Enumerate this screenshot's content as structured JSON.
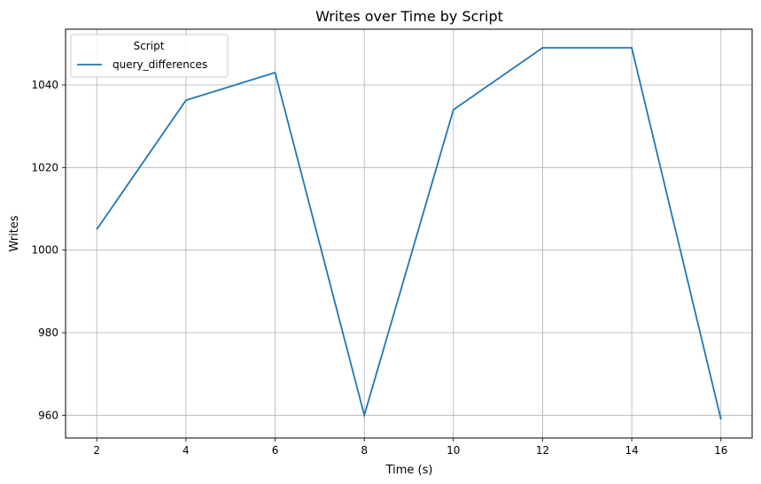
{
  "chart_data": {
    "type": "line",
    "title": "Writes over Time by Script",
    "xlabel": "Time (s)",
    "ylabel": "Writes",
    "x": [
      2,
      4,
      6,
      8,
      10,
      12,
      14,
      16
    ],
    "series": [
      {
        "name": "query_differences",
        "values": [
          1005,
          1036.3,
          1043,
          960,
          1034,
          1049,
          1049,
          959
        ],
        "color": "#1f77b4"
      }
    ],
    "xlim": [
      1.3,
      16.7
    ],
    "ylim": [
      954.5,
      1053.5
    ],
    "xticks": [
      2,
      4,
      6,
      8,
      10,
      12,
      14,
      16
    ],
    "yticks": [
      960,
      980,
      1000,
      1020,
      1040
    ],
    "grid": true,
    "legend": {
      "title": "Script",
      "position": "upper-left"
    }
  }
}
